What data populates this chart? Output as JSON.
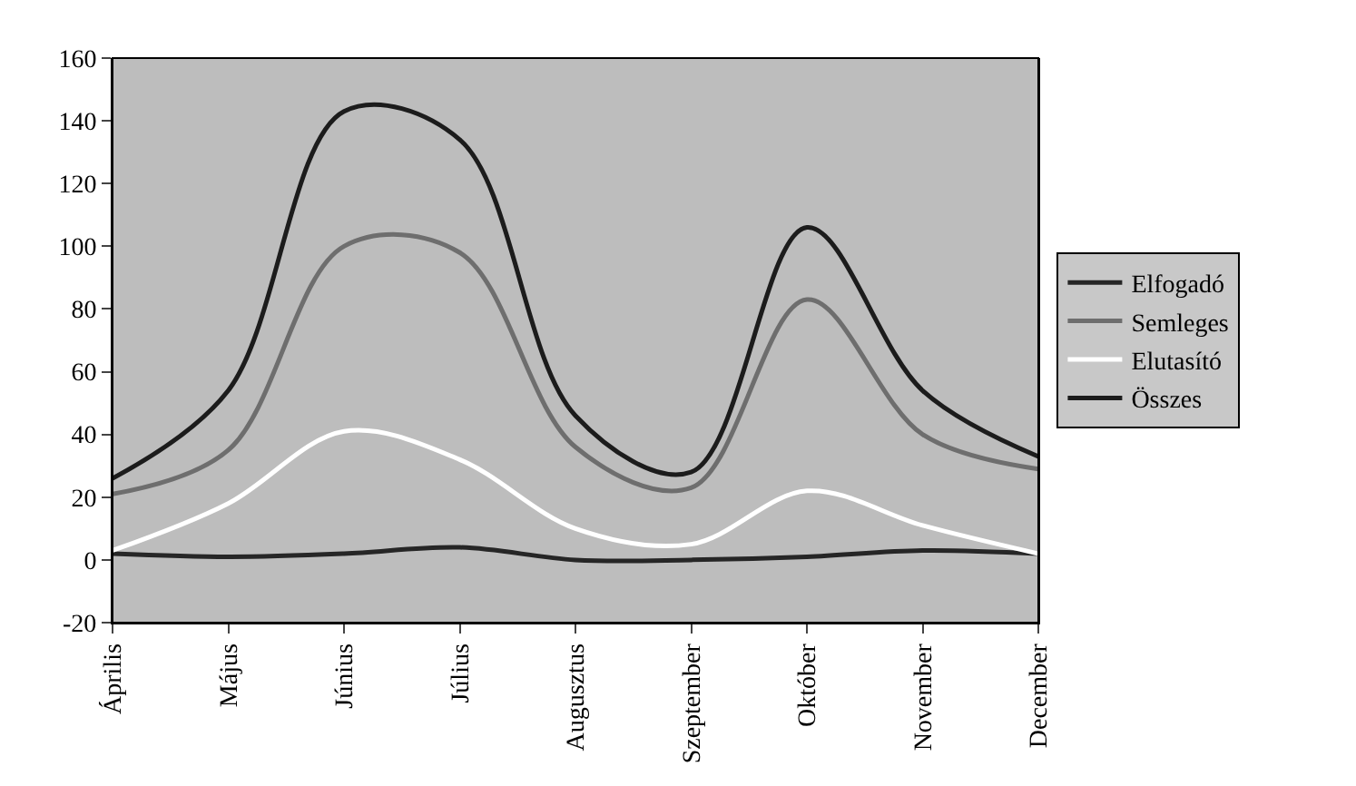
{
  "chart_data": {
    "type": "line",
    "categories": [
      "Április",
      "Május",
      "Június",
      "Július",
      "Augusztus",
      "Szeptember",
      "Október",
      "November",
      "December"
    ],
    "series": [
      {
        "name": "Elfogadó",
        "color": "#262626",
        "values": [
          2,
          1,
          2,
          4,
          0,
          0,
          1,
          3,
          2
        ]
      },
      {
        "name": "Semleges",
        "color": "#6e6e6e",
        "values": [
          21,
          35,
          100,
          98,
          36,
          23,
          83,
          40,
          29
        ]
      },
      {
        "name": "Elutasító",
        "color": "#ffffff",
        "values": [
          3,
          18,
          41,
          32,
          10,
          5,
          22,
          11,
          2
        ]
      },
      {
        "name": "Összes",
        "color": "#1c1c1c",
        "values": [
          26,
          54,
          143,
          134,
          46,
          28,
          106,
          54,
          33
        ]
      }
    ],
    "ylim": [
      -20,
      160
    ],
    "yticks": [
      -20,
      0,
      20,
      40,
      60,
      80,
      100,
      120,
      140,
      160
    ],
    "grid": false,
    "legend": "right",
    "marker": "none",
    "line_style": "solid"
  }
}
